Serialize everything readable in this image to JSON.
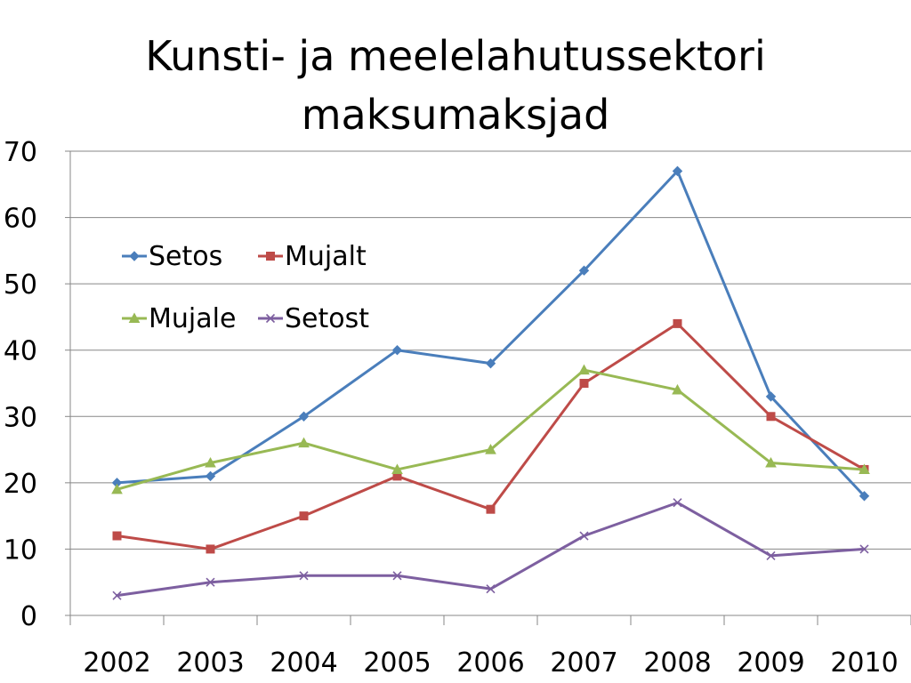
{
  "chart_data": {
    "type": "line",
    "title": "Kunsti- ja meelelahutussektori maksumaksjad",
    "title_lines": [
      "Kunsti- ja meelelahutussektori",
      "maksumaksjad"
    ],
    "xlabel": "",
    "ylabel": "",
    "categories": [
      "2002",
      "2003",
      "2004",
      "2005",
      "2006",
      "2007",
      "2008",
      "2009",
      "2010"
    ],
    "ylim": [
      0,
      70
    ],
    "yticks": [
      "0",
      "10",
      "20",
      "30",
      "40",
      "50",
      "60",
      "70"
    ],
    "grid": true,
    "legend_position": "top-left",
    "series": [
      {
        "name": "Setos",
        "color": "#4a7ebb",
        "marker": "diamond",
        "values": [
          20,
          21,
          30,
          40,
          38,
          52,
          67,
          33,
          18
        ]
      },
      {
        "name": "Mujalt",
        "color": "#be4b48",
        "marker": "square",
        "values": [
          12,
          10,
          15,
          21,
          16,
          35,
          44,
          30,
          22
        ]
      },
      {
        "name": "Mujale",
        "color": "#98b954",
        "marker": "triangle",
        "values": [
          19,
          23,
          26,
          22,
          25,
          37,
          34,
          23,
          22
        ]
      },
      {
        "name": "Setost",
        "color": "#7d5fa0",
        "marker": "x",
        "values": [
          3,
          5,
          6,
          6,
          4,
          12,
          17,
          9,
          10
        ]
      }
    ]
  }
}
